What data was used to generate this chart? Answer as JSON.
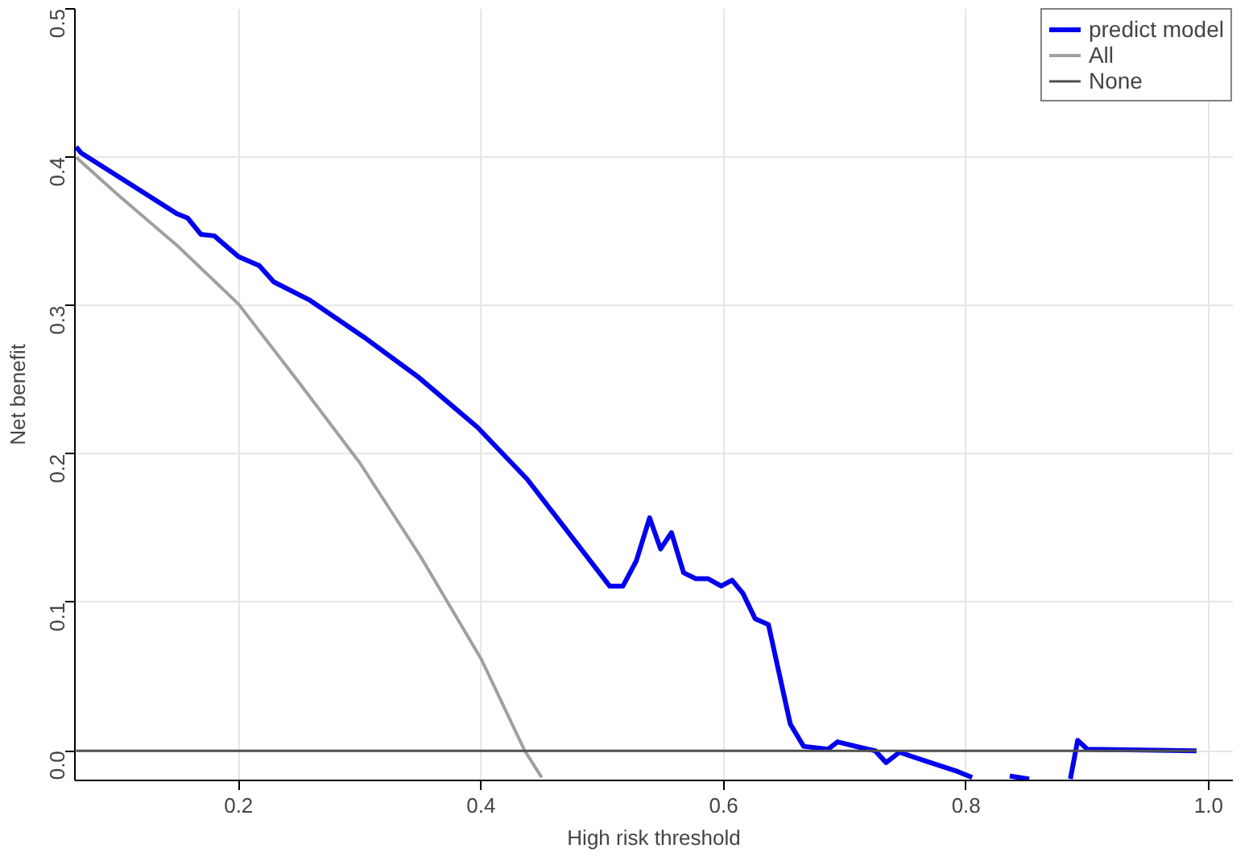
{
  "chart_data": {
    "type": "line",
    "xlabel": "High risk threshold",
    "ylabel": "Net benefit",
    "xlim": [
      0.065,
      1.02
    ],
    "ylim": [
      -0.02,
      0.5
    ],
    "xticks": [
      0.2,
      0.4,
      0.6,
      0.8,
      {
        "value": 1.0,
        "label": "1.0"
      }
    ],
    "yticks": [
      {
        "value": 0,
        "label": "0.0"
      },
      0.1,
      0.2,
      0.3,
      0.4,
      0.5
    ],
    "grid": true,
    "legend": "top right",
    "marker": "none",
    "line_style": "solid",
    "series": [
      {
        "name": "predict model",
        "color": "#0000ee",
        "x": [
          0.066,
          0.07,
          0.149,
          0.158,
          0.169,
          0.18,
          0.2,
          0.217,
          0.229,
          0.258,
          0.303,
          0.348,
          0.397,
          0.438,
          0.473,
          0.506,
          0.517,
          0.528,
          0.539,
          0.548,
          0.557,
          0.567,
          0.577,
          0.587,
          0.598,
          0.607,
          0.616,
          0.626,
          0.637,
          0.655,
          0.666,
          0.686,
          0.694,
          0.714,
          0.725,
          0.734,
          0.745,
          0.763,
          0.793,
          0.805,
          0.82,
          0.836,
          0.852,
          0.87,
          0.886,
          0.892,
          0.9,
          0.99
        ],
        "values": [
          0.407,
          0.403,
          0.362,
          0.359,
          0.348,
          0.347,
          0.333,
          0.327,
          0.316,
          0.304,
          0.279,
          0.252,
          0.218,
          0.183,
          0.146,
          0.111,
          0.111,
          0.128,
          0.157,
          0.136,
          0.147,
          0.12,
          0.116,
          0.116,
          0.111,
          0.115,
          0.106,
          0.089,
          0.085,
          0.018,
          0.003,
          0.001,
          0.006,
          0.002,
          0.0,
          -0.008,
          -0.001,
          -0.006,
          -0.014,
          -0.018,
          null,
          -0.017,
          -0.019,
          null,
          -0.019,
          0.007,
          0.001,
          0.0
        ]
      },
      {
        "name": "All",
        "color": "#a0a0a0",
        "x": [
          0.066,
          0.1,
          0.15,
          0.2,
          0.25,
          0.3,
          0.35,
          0.4,
          0.436,
          0.45
        ],
        "values": [
          0.4,
          0.375,
          0.34,
          0.301,
          0.248,
          0.194,
          0.131,
          0.062,
          0.0,
          -0.018
        ]
      },
      {
        "name": "None",
        "color": "#505050",
        "x": [
          0.066,
          0.99
        ],
        "values": [
          0.0,
          0.0
        ]
      }
    ]
  }
}
